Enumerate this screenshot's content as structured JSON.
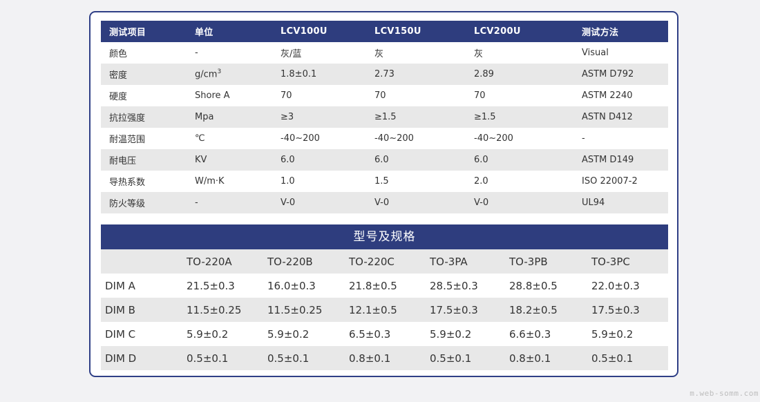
{
  "properties": {
    "headers": [
      "测试项目",
      "单位",
      "LCV100U",
      "LCV150U",
      "LCV200U",
      "测试方法"
    ],
    "rows": [
      [
        "颜色",
        "-",
        "灰/蓝",
        "灰",
        "灰",
        "Visual"
      ],
      [
        "密度",
        "g/cm",
        "1.8±0.1",
        "2.73",
        "2.89",
        "ASTM D792"
      ],
      [
        "硬度",
        "Shore A",
        "70",
        "70",
        "70",
        "ASTM 2240"
      ],
      [
        "抗拉强度",
        "Mpa",
        "≥3",
        "≥1.5",
        "≥1.5",
        "ASTN D412"
      ],
      [
        "耐温范围",
        "℃",
        "-40~200",
        "-40~200",
        "-40~200",
        "-"
      ],
      [
        "耐电压",
        "KV",
        "6.0",
        "6.0",
        "6.0",
        "ASTM D149"
      ],
      [
        "导热系数",
        "W/m·K",
        "1.0",
        "1.5",
        "2.0",
        "ISO 22007-2"
      ],
      [
        "防火等级",
        "-",
        "V-0",
        "V-0",
        "V-0",
        "UL94"
      ]
    ],
    "density_unit_superscript": "3"
  },
  "specs": {
    "title": "型号及规格",
    "headers": [
      "",
      "TO-220A",
      "TO-220B",
      "TO-220C",
      "TO-3PA",
      "TO-3PB",
      "TO-3PC"
    ],
    "rows": [
      [
        "DIM A",
        "21.5±0.3",
        "16.0±0.3",
        "21.8±0.5",
        "28.5±0.3",
        "28.8±0.5",
        "22.0±0.3"
      ],
      [
        "DIM B",
        "11.5±0.25",
        "11.5±0.25",
        "12.1±0.5",
        "17.5±0.3",
        "18.2±0.5",
        "17.5±0.3"
      ],
      [
        "DIM C",
        "5.9±0.2",
        "5.9±0.2",
        "6.5±0.3",
        "5.9±0.2",
        "6.6±0.3",
        "5.9±0.2"
      ],
      [
        "DIM D",
        "0.5±0.1",
        "0.5±0.1",
        "0.8±0.1",
        "0.5±0.1",
        "0.8±0.1",
        "0.5±0.1"
      ]
    ]
  },
  "watermark": "m.web-somm.com"
}
